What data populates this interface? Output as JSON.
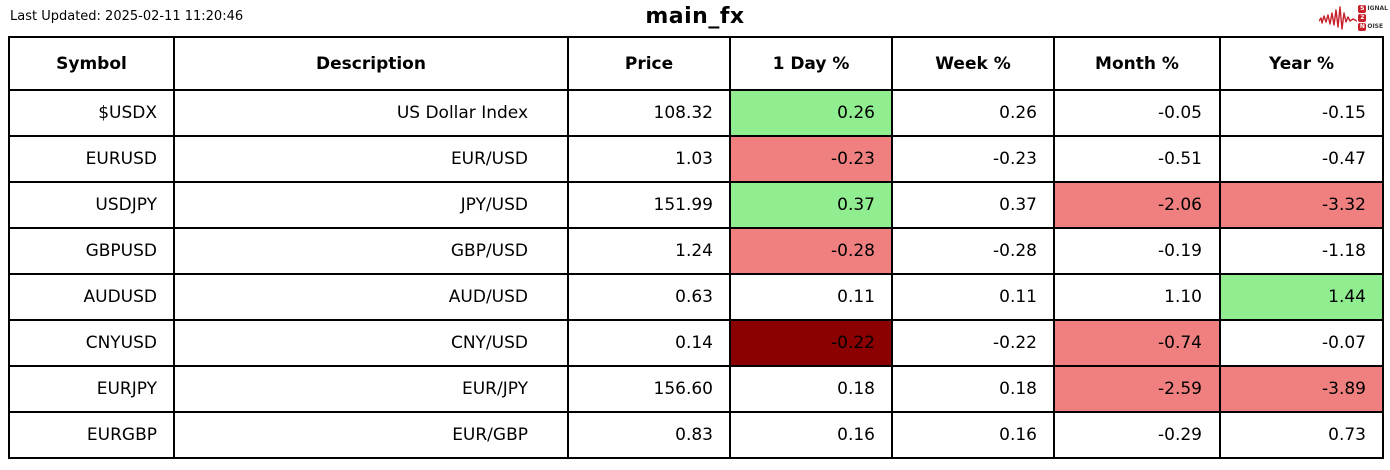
{
  "header": {
    "last_updated": "Last Updated: 2025-02-11 11:20:46",
    "title": "main_fx"
  },
  "logo": {
    "name": "signal-2-noise",
    "full_text": "SIGNAL 2 NOISE",
    "line1_initial": "S",
    "line1_rest": "IGNAL",
    "line2_initial": "2",
    "line3_initial": "N",
    "line3_rest": "OISE",
    "accent_color": "#c8202a"
  },
  "colors": {
    "positive": "#90EE90",
    "negative": "#F08080",
    "strong_negative": "#8B0000",
    "border": "#000000",
    "background": "#ffffff"
  },
  "table": {
    "columns": [
      "Symbol",
      "Description",
      "Price",
      "1 Day %",
      "Week %",
      "Month %",
      "Year %"
    ],
    "rows": [
      {
        "cells": [
          {
            "v": "$USDX"
          },
          {
            "v": "US Dollar Index"
          },
          {
            "v": "108.32"
          },
          {
            "v": "0.26",
            "bg": "positive"
          },
          {
            "v": "0.26"
          },
          {
            "v": "-0.05"
          },
          {
            "v": "-0.15"
          }
        ]
      },
      {
        "cells": [
          {
            "v": "EURUSD"
          },
          {
            "v": "EUR/USD"
          },
          {
            "v": "1.03"
          },
          {
            "v": "-0.23",
            "bg": "negative"
          },
          {
            "v": "-0.23"
          },
          {
            "v": "-0.51"
          },
          {
            "v": "-0.47"
          }
        ]
      },
      {
        "cells": [
          {
            "v": "USDJPY"
          },
          {
            "v": "JPY/USD"
          },
          {
            "v": "151.99"
          },
          {
            "v": "0.37",
            "bg": "positive"
          },
          {
            "v": "0.37"
          },
          {
            "v": "-2.06",
            "bg": "negative"
          },
          {
            "v": "-3.32",
            "bg": "negative"
          }
        ]
      },
      {
        "cells": [
          {
            "v": "GBPUSD"
          },
          {
            "v": "GBP/USD"
          },
          {
            "v": "1.24"
          },
          {
            "v": "-0.28",
            "bg": "negative"
          },
          {
            "v": "-0.28"
          },
          {
            "v": "-0.19"
          },
          {
            "v": "-1.18"
          }
        ]
      },
      {
        "cells": [
          {
            "v": "AUDUSD"
          },
          {
            "v": "AUD/USD"
          },
          {
            "v": "0.63"
          },
          {
            "v": "0.11"
          },
          {
            "v": "0.11"
          },
          {
            "v": "1.10"
          },
          {
            "v": "1.44",
            "bg": "positive"
          }
        ]
      },
      {
        "cells": [
          {
            "v": "CNYUSD"
          },
          {
            "v": "CNY/USD"
          },
          {
            "v": "0.14"
          },
          {
            "v": "-0.22",
            "bg": "strong_negative"
          },
          {
            "v": "-0.22"
          },
          {
            "v": "-0.74",
            "bg": "negative"
          },
          {
            "v": "-0.07"
          }
        ]
      },
      {
        "cells": [
          {
            "v": "EURJPY"
          },
          {
            "v": "EUR/JPY"
          },
          {
            "v": "156.60"
          },
          {
            "v": "0.18"
          },
          {
            "v": "0.18"
          },
          {
            "v": "-2.59",
            "bg": "negative"
          },
          {
            "v": "-3.89",
            "bg": "negative"
          }
        ]
      },
      {
        "cells": [
          {
            "v": "EURGBP"
          },
          {
            "v": "EUR/GBP"
          },
          {
            "v": "0.83"
          },
          {
            "v": "0.16"
          },
          {
            "v": "0.16"
          },
          {
            "v": "-0.29"
          },
          {
            "v": "0.73"
          }
        ]
      }
    ]
  }
}
